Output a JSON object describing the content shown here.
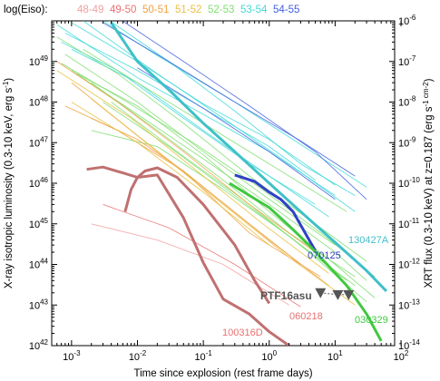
{
  "chart_data": {
    "type": "line",
    "legend": {
      "title": "log(Eiso):",
      "entries": [
        {
          "label": "48-49",
          "color": "#f2a0a0"
        },
        {
          "label": "49-50",
          "color": "#e87070"
        },
        {
          "label": "50-51",
          "color": "#f0a040"
        },
        {
          "label": "51-52",
          "color": "#e8c040"
        },
        {
          "label": "52-53",
          "color": "#7ede6e"
        },
        {
          "label": "53-54",
          "color": "#40d8d8"
        },
        {
          "label": "54-55",
          "color": "#4060e0"
        }
      ]
    },
    "xlabel": "Time since explosion (rest frame days)",
    "ylabel": "X-ray isotropic luminosity (0.3-10 keV, erg s",
    "ylabel_units": "-1",
    "y2label": "XRT flux (0.3-10 keV) at z=0.187 (erg s",
    "y2label_units": "-1 cm-2",
    "x_ticks": [
      "10",
      "10",
      "10",
      "10",
      "10",
      "10"
    ],
    "x_tick_exps": [
      "-3",
      "-2",
      "-1",
      "0",
      "1",
      "2"
    ],
    "y_ticks": [
      "10",
      "10",
      "10",
      "10",
      "10",
      "10",
      "10",
      "10"
    ],
    "y_tick_exps": [
      "42",
      "43",
      "44",
      "45",
      "46",
      "47",
      "48",
      "49"
    ],
    "y2_ticks": [
      "10",
      "10",
      "10",
      "10",
      "10",
      "10",
      "10",
      "10",
      "10"
    ],
    "y2_tick_exps": [
      "-14",
      "-13",
      "-12",
      "-11",
      "-10",
      "-9",
      "-8",
      "-7",
      "-6"
    ],
    "xlim": [
      0.0005,
      80
    ],
    "ylim": [
      1e+42,
      1e+50
    ],
    "labels": {
      "ptf": "PTF16asu",
      "grb130427A": "130427A",
      "grb070125": "070125",
      "grb030329": "030329",
      "grb060218": "060218",
      "grb100316D": "100316D"
    },
    "highlighted": [
      {
        "name": "130427A",
        "color": "#40c0c8",
        "x": [
          0.004,
          0.01,
          0.03,
          0.1,
          0.3,
          1,
          3,
          10,
          30,
          60
        ],
        "y": [
          9e+49,
          1e+49,
          2e+48,
          3e+47,
          6e+46,
          1e+46,
          2e+45,
          3.5e+44,
          7e+43,
          2.2e+43
        ]
      },
      {
        "name": "070125",
        "color": "#3040c8",
        "x": [
          0.3,
          0.6,
          1.0,
          1.5,
          2.3,
          3.5,
          5.0
        ],
        "y": [
          1.6e+46,
          1.1e+46,
          6e+45,
          4e+45,
          2e+45,
          6e+44,
          2.2e+44
        ]
      },
      {
        "name": "030329",
        "color": "#40c840",
        "x": [
          0.25,
          0.5,
          1,
          2,
          4,
          8,
          15,
          30,
          50
        ],
        "y": [
          1e+46,
          5e+45,
          2.5e+45,
          9e+44,
          3e+44,
          9e+43,
          3e+43,
          6e+42,
          1.3e+42
        ]
      },
      {
        "name": "060218",
        "color": "#c07070",
        "x": [
          0.0017,
          0.003,
          0.006,
          0.01,
          0.02,
          0.05,
          0.1,
          0.2,
          0.5,
          1,
          2
        ],
        "y": [
          2.2e+46,
          2.5e+46,
          1.8e+46,
          1.4e+46,
          1.6e+46,
          1.4e+45,
          1.1e+44,
          1.4e+43,
          6e+42,
          2.2e+42,
          1e+42
        ]
      },
      {
        "name": "100316D",
        "color": "#c07070",
        "x": [
          0.0065,
          0.008,
          0.01,
          0.013,
          0.02,
          0.04,
          0.1,
          0.3,
          0.6,
          1.0
        ],
        "y": [
          2e+45,
          7e+45,
          1.4e+46,
          2e+46,
          2.4e+46,
          1.4e+46,
          3e+45,
          3e+44,
          4e+43,
          1.1e+43
        ]
      }
    ],
    "upper_limits": [
      {
        "x": 6,
        "y": 2e+43
      },
      {
        "x": 11,
        "y": 1.8e+43
      },
      {
        "x": 16,
        "y": 1.8e+43
      }
    ],
    "background_series": [
      {
        "color": "#40d8d8",
        "x": [
          0.0006,
          0.01,
          0.1,
          1,
          10
        ],
        "y": [
          8e+49,
          4e+48,
          5e+47,
          6e+46,
          5e+45
        ]
      },
      {
        "color": "#40d8d8",
        "x": [
          0.0008,
          0.01,
          0.1,
          1,
          5
        ],
        "y": [
          5e+49,
          6e+48,
          7e+47,
          8e+46,
          1.2e+46
        ]
      },
      {
        "color": "#40d8d8",
        "x": [
          0.001,
          0.01,
          0.1,
          1,
          10
        ],
        "y": [
          9e+49,
          1e+49,
          9e+47,
          1.2e+47,
          9e+45
        ]
      },
      {
        "color": "#40d8d8",
        "x": [
          0.0015,
          0.02,
          0.2,
          2,
          20
        ],
        "y": [
          1e+50,
          5e+48,
          4e+47,
          3e+46,
          2e+45
        ]
      },
      {
        "color": "#40d8d8",
        "x": [
          0.002,
          0.02,
          0.3,
          3,
          30
        ],
        "y": [
          1.5e+50,
          1.4e+49,
          1e+48,
          9e+46,
          8e+45
        ]
      },
      {
        "color": "#40d8d8",
        "x": [
          0.0007,
          0.005,
          0.05,
          0.5,
          5
        ],
        "y": [
          3e+49,
          6e+48,
          4e+47,
          3e+46,
          3e+45
        ]
      },
      {
        "color": "#40d8d8",
        "x": [
          0.001,
          0.01,
          0.1,
          1,
          8
        ],
        "y": [
          2e+49,
          3e+48,
          2e+47,
          1.5e+46,
          1.5e+45
        ]
      },
      {
        "color": "#40d8d8",
        "x": [
          0.0025,
          0.03,
          0.3,
          3,
          20
        ],
        "y": [
          1.6e+50,
          1e+49,
          6e+47,
          3e+46,
          5e+45
        ]
      },
      {
        "color": "#4060e0",
        "x": [
          0.003,
          0.03,
          0.3,
          3,
          20
        ],
        "y": [
          9e+49,
          1e+49,
          1e+48,
          1.1e+47,
          1.5e+46
        ]
      },
      {
        "color": "#4060e0",
        "x": [
          0.005,
          0.05,
          0.5,
          5,
          30
        ],
        "y": [
          1.2e+50,
          1e+49,
          8e+47,
          6e+46,
          4e+45
        ]
      },
      {
        "color": "#4060e0",
        "x": [
          0.01,
          0.1,
          1,
          10
        ],
        "y": [
          7e+48,
          7e+47,
          6e+46,
          4e+45
        ]
      },
      {
        "color": "#7ede6e",
        "x": [
          0.0006,
          0.005,
          0.05,
          0.5,
          5,
          30
        ],
        "y": [
          4e+49,
          5e+48,
          3e+47,
          1.5e+46,
          1e+45,
          1.2e+44
        ]
      },
      {
        "color": "#7ede6e",
        "x": [
          0.0008,
          0.01,
          0.1,
          1,
          10
        ],
        "y": [
          1.5e+49,
          1e+48,
          6e+46,
          4e+45,
          3e+44
        ]
      },
      {
        "color": "#7ede6e",
        "x": [
          0.001,
          0.01,
          0.1,
          1,
          10,
          30
        ],
        "y": [
          6e+48,
          5e+47,
          4e+46,
          3e+45,
          2e+44,
          4e+43
        ]
      },
      {
        "color": "#7ede6e",
        "x": [
          0.002,
          0.02,
          0.2,
          2,
          20
        ],
        "y": [
          3e+48,
          2e+47,
          1.2e+46,
          6e+44,
          5e+43
        ]
      },
      {
        "color": "#7ede6e",
        "x": [
          0.003,
          0.03,
          0.3,
          3,
          20
        ],
        "y": [
          1e+48,
          8e+46,
          5e+45,
          3e+44,
          3e+43
        ]
      },
      {
        "color": "#7ede6e",
        "x": [
          0.0015,
          0.015,
          0.15,
          1.5,
          15
        ],
        "y": [
          2e+49,
          2e+48,
          2e+47,
          2e+46,
          2e+45
        ]
      },
      {
        "color": "#7ede6e",
        "x": [
          0.0012,
          0.01,
          0.1,
          1,
          10,
          40
        ],
        "y": [
          5e+48,
          8e+47,
          5e+46,
          2e+45,
          1e+44,
          1.5e+43
        ]
      },
      {
        "color": "#7ede6e",
        "x": [
          0.002,
          0.02,
          0.2,
          2,
          15
        ],
        "y": [
          2e+47,
          8e+46,
          7e+45,
          5e+44,
          4e+43
        ]
      },
      {
        "color": "#7ede6e",
        "x": [
          0.0007,
          0.007,
          0.07,
          0.7,
          7,
          40
        ],
        "y": [
          9e+48,
          1e+48,
          1e+47,
          8e+45,
          5e+44,
          5e+43
        ]
      },
      {
        "color": "#7ede6e",
        "x": [
          0.004,
          0.04,
          0.4,
          4,
          30
        ],
        "y": [
          1e+48,
          6e+46,
          4e+45,
          2e+44,
          1.2e+43
        ]
      },
      {
        "color": "#f0a040",
        "x": [
          0.0006,
          0.005,
          0.05,
          0.5,
          5
        ],
        "y": [
          1e+49,
          1e+48,
          6e+46,
          3e+45,
          2e+44
        ]
      },
      {
        "color": "#f0a040",
        "x": [
          0.001,
          0.01,
          0.1,
          1,
          8
        ],
        "y": [
          3e+48,
          1.5e+47,
          8e+45,
          4e+44,
          3e+43
        ]
      },
      {
        "color": "#f0a040",
        "x": [
          0.002,
          0.01,
          0.05,
          0.5,
          3
        ],
        "y": [
          4e+47,
          1.2e+47,
          2e+46,
          1e+45,
          1e+44
        ]
      },
      {
        "color": "#f0a040",
        "x": [
          0.0008,
          0.005,
          0.05,
          0.5,
          6
        ],
        "y": [
          8e+47,
          2e+47,
          2e+46,
          6e+44,
          5e+43
        ]
      },
      {
        "color": "#e8c040",
        "x": [
          0.0006,
          0.008,
          0.08,
          0.8,
          8
        ],
        "y": [
          6e+48,
          4e+47,
          2e+46,
          1e+45,
          6e+43
        ]
      },
      {
        "color": "#e8c040",
        "x": [
          0.002,
          0.02,
          0.2,
          2,
          20
        ],
        "y": [
          1.2e+48,
          6e+46,
          3e+45,
          1.5e+44,
          1e+43
        ]
      },
      {
        "color": "#e8c040",
        "x": [
          0.001,
          0.01,
          0.1,
          1
        ],
        "y": [
          1e+48,
          1e+47,
          6e+45,
          3e+44
        ]
      },
      {
        "color": "#f2a0a0",
        "x": [
          0.002,
          0.02,
          0.2,
          2
        ],
        "y": [
          1e+45,
          4e+44,
          1e+44,
          1e+43
        ]
      },
      {
        "color": "#e87070",
        "x": [
          0.003,
          0.03,
          0.3,
          3
        ],
        "y": [
          3e+45,
          8e+44,
          1e+44,
          9e+42
        ]
      }
    ]
  }
}
